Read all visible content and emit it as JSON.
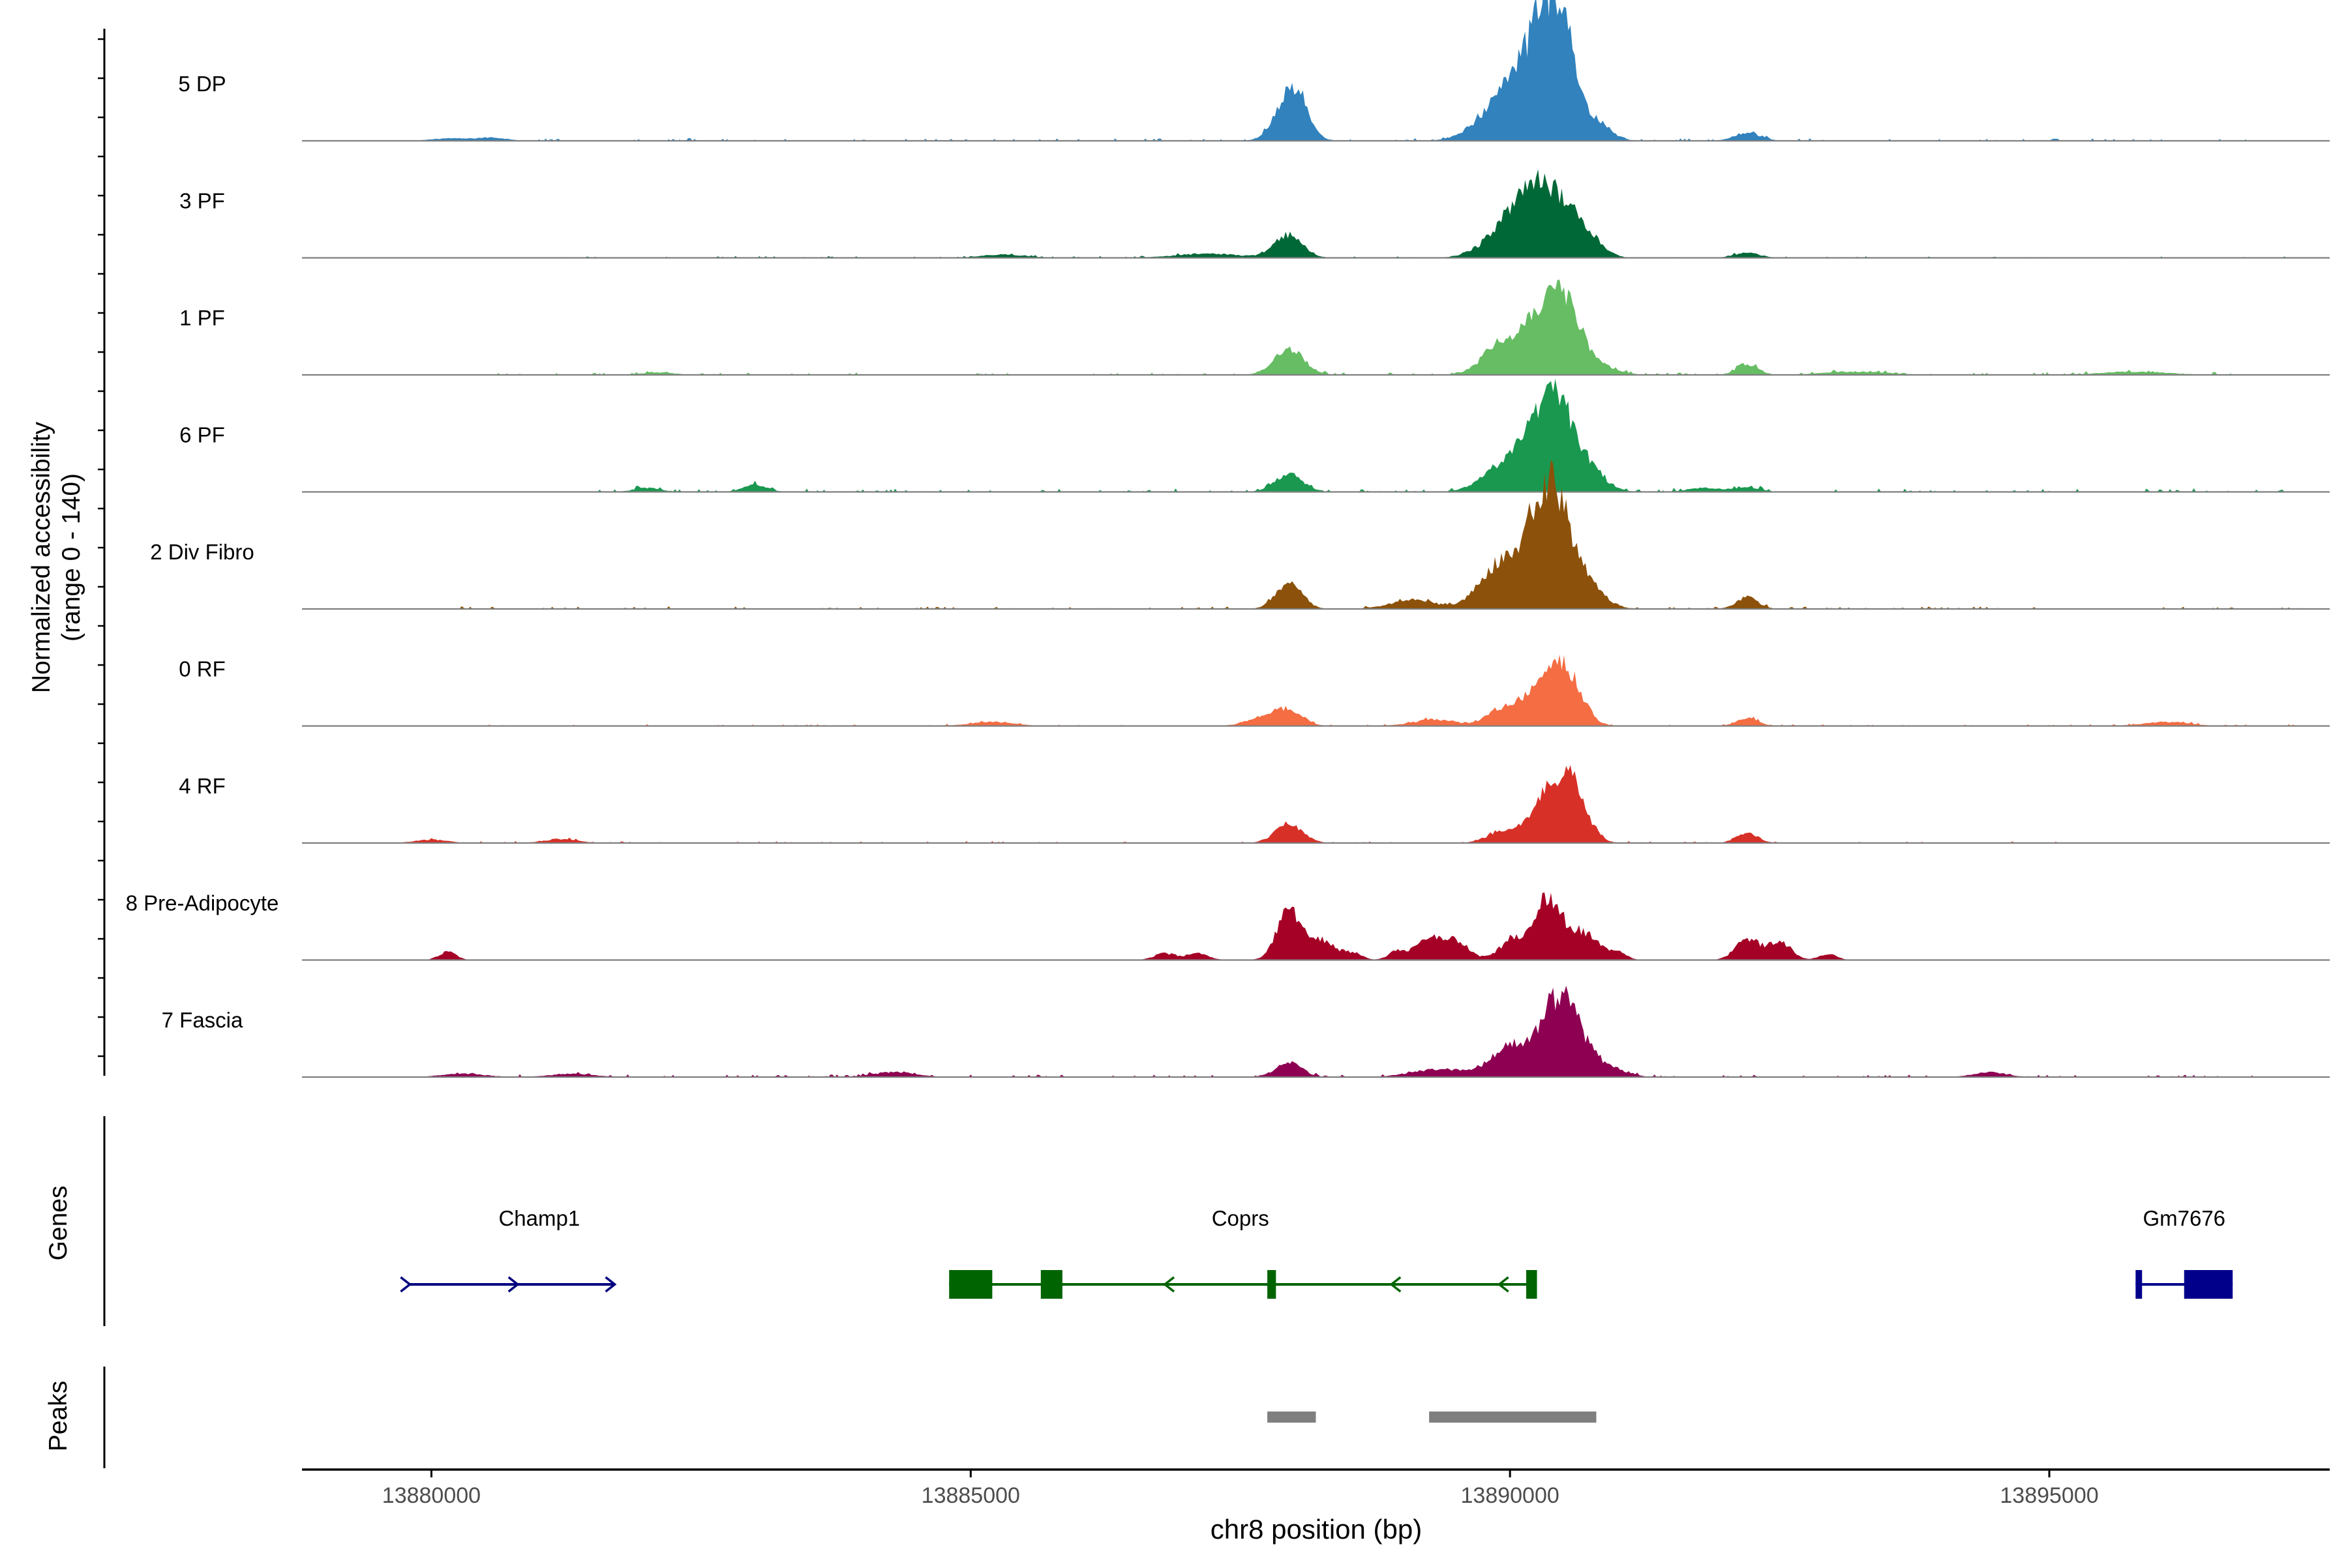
{
  "chart_data": {
    "type": "coverage-track",
    "y_axis_label_line1": "Normalized accessibility",
    "y_axis_label_line2": "(range 0 - 140)",
    "y_range": [
      0,
      140
    ],
    "x_axis_label": "chr8 position (bp)",
    "x_range": [
      13878800,
      13897600
    ],
    "x_ticks": [
      13880000,
      13885000,
      13890000,
      13895000
    ],
    "x_tick_labels": [
      "13880000",
      "13885000",
      "13890000",
      "13895000"
    ],
    "tracks": [
      {
        "name": "5 DP",
        "color": "#3182bd",
        "peaks": [
          [
            13887950,
            50,
            130
          ],
          [
            13888050,
            22,
            110
          ],
          [
            13889900,
            38,
            220
          ],
          [
            13890150,
            52,
            180
          ],
          [
            13890350,
            115,
            150
          ],
          [
            13890500,
            72,
            120
          ],
          [
            13890750,
            25,
            150
          ],
          [
            13892200,
            10,
            120
          ],
          [
            13880150,
            3,
            150
          ],
          [
            13880550,
            4,
            150
          ]
        ],
        "noise": [
          [
            13881000,
            13897400,
            3
          ]
        ]
      },
      {
        "name": "3 PF",
        "color": "#006837",
        "peaks": [
          [
            13887950,
            28,
            130
          ],
          [
            13889900,
            22,
            200
          ],
          [
            13890200,
            80,
            180
          ],
          [
            13890500,
            50,
            160
          ],
          [
            13890750,
            18,
            130
          ],
          [
            13892200,
            6,
            120
          ],
          [
            13887200,
            5,
            300
          ],
          [
            13885300,
            4,
            200
          ]
        ],
        "noise": [
          [
            13881000,
            13897200,
            2
          ]
        ]
      },
      {
        "name": "1 PF",
        "color": "#66bd63",
        "peaks": [
          [
            13887950,
            32,
            140
          ],
          [
            13889950,
            42,
            180
          ],
          [
            13890350,
            78,
            170
          ],
          [
            13890550,
            50,
            140
          ],
          [
            13890850,
            10,
            150
          ],
          [
            13892200,
            12,
            100
          ],
          [
            13882100,
            3,
            150
          ],
          [
            13893200,
            4,
            300
          ],
          [
            13895800,
            4,
            300
          ]
        ],
        "noise": [
          [
            13880500,
            13897000,
            3
          ]
        ]
      },
      {
        "name": "6 PF",
        "color": "#1a9850",
        "peaks": [
          [
            13887950,
            22,
            130
          ],
          [
            13889950,
            30,
            200
          ],
          [
            13890300,
            78,
            170
          ],
          [
            13890500,
            62,
            150
          ],
          [
            13890750,
            20,
            150
          ],
          [
            13883000,
            9,
            110
          ],
          [
            13882000,
            5,
            120
          ],
          [
            13891800,
            5,
            150
          ],
          [
            13892200,
            6,
            120
          ]
        ],
        "noise": [
          [
            13881500,
            13897400,
            4
          ]
        ]
      },
      {
        "name": "2 Div Fibro",
        "color": "#8c510a",
        "peaks": [
          [
            13887950,
            32,
            120
          ],
          [
            13889900,
            55,
            180
          ],
          [
            13890300,
            120,
            150
          ],
          [
            13890500,
            70,
            150
          ],
          [
            13890750,
            20,
            150
          ],
          [
            13889100,
            12,
            200
          ],
          [
            13892200,
            14,
            100
          ]
        ],
        "noise": [
          [
            13880000,
            13897400,
            3
          ]
        ]
      },
      {
        "name": "0 RF",
        "color": "#f46d43",
        "peaks": [
          [
            13887950,
            18,
            130
          ],
          [
            13887700,
            10,
            150
          ],
          [
            13889950,
            22,
            150
          ],
          [
            13890350,
            62,
            170
          ],
          [
            13890550,
            40,
            140
          ],
          [
            13889300,
            8,
            200
          ],
          [
            13885200,
            5,
            200
          ],
          [
            13892200,
            10,
            100
          ],
          [
            13896100,
            5,
            200
          ]
        ],
        "noise": [
          [
            13880000,
            13897400,
            2
          ]
        ]
      },
      {
        "name": "4 RF",
        "color": "#d73027",
        "peaks": [
          [
            13887950,
            22,
            130
          ],
          [
            13889950,
            15,
            150
          ],
          [
            13890400,
            65,
            170
          ],
          [
            13890600,
            42,
            130
          ],
          [
            13892200,
            12,
            100
          ],
          [
            13881200,
            5,
            150
          ],
          [
            13880000,
            4,
            150
          ]
        ],
        "noise": [
          [
            13880000,
            13896200,
            2
          ]
        ]
      },
      {
        "name": "8 Pre-Adipocyte",
        "color": "#a50026",
        "peaks": [
          [
            13887950,
            60,
            110
          ],
          [
            13888250,
            25,
            130
          ],
          [
            13889250,
            25,
            130
          ],
          [
            13889500,
            22,
            120
          ],
          [
            13890050,
            28,
            130
          ],
          [
            13890350,
            70,
            110
          ],
          [
            13890650,
            35,
            160
          ],
          [
            13892200,
            25,
            110
          ],
          [
            13892500,
            22,
            110
          ],
          [
            13880150,
            10,
            80
          ],
          [
            13886800,
            8,
            100
          ],
          [
            13887100,
            8,
            100
          ],
          [
            13888550,
            8,
            80
          ],
          [
            13888950,
            10,
            80
          ],
          [
            13891000,
            8,
            80
          ],
          [
            13892950,
            8,
            80
          ]
        ],
        "noise": []
      },
      {
        "name": "7 Fascia",
        "color": "#8e0152",
        "peaks": [
          [
            13887950,
            18,
            120
          ],
          [
            13889350,
            10,
            250
          ],
          [
            13890000,
            38,
            170
          ],
          [
            13890400,
            78,
            150
          ],
          [
            13890600,
            45,
            140
          ],
          [
            13890900,
            12,
            160
          ],
          [
            13884300,
            6,
            200
          ],
          [
            13894450,
            6,
            150
          ],
          [
            13880300,
            4,
            200
          ],
          [
            13881300,
            4,
            200
          ]
        ],
        "noise": [
          [
            13880000,
            13897000,
            3
          ]
        ]
      }
    ],
    "genes_panel_label": "Genes",
    "genes": [
      {
        "name": "Champ1",
        "color": "#000080",
        "start": 13879800,
        "end": 13881700,
        "strand": "+",
        "label_pos": 13881000,
        "arrows": [
          13879800,
          13880800,
          13881700
        ],
        "exons": []
      },
      {
        "name": "Coprs",
        "color": "#006400",
        "start": 13884800,
        "end": 13890250,
        "strand": "-",
        "label_pos": 13887500,
        "arrows": [
          13886800,
          13888900,
          13889900
        ],
        "exons": [
          [
            13884800,
            13885200
          ],
          [
            13885650,
            13885850
          ],
          [
            13887750,
            13887830
          ],
          [
            13890150,
            13890250
          ]
        ]
      },
      {
        "name": "Gm7676",
        "color": "#00008b",
        "start": 13895800,
        "end": 13896700,
        "strand": "+",
        "label_pos": 13896250,
        "arrows": [],
        "exons": [
          [
            13895800,
            13895860
          ],
          [
            13896250,
            13896700
          ]
        ]
      }
    ],
    "peaks_panel_label": "Peaks",
    "peak_regions": [
      [
        13887750,
        13888200
      ],
      [
        13889250,
        13890800
      ]
    ]
  }
}
